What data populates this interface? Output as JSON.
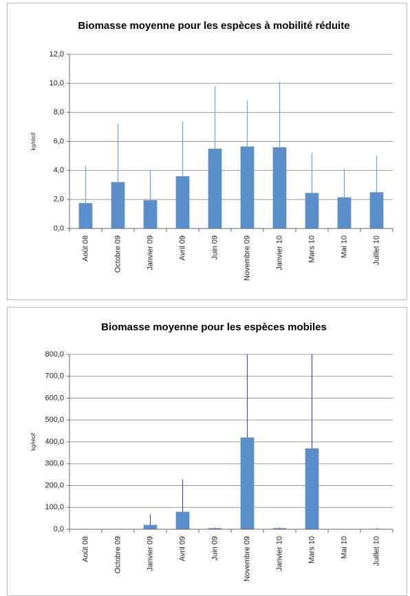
{
  "chart_data": [
    {
      "type": "bar",
      "title": "Biomasse moyenne pour les espèces à mobilité réduite",
      "y_label": "kg/récif",
      "categories": [
        "Août 08",
        "Octobre 09",
        "Janvier 09",
        "Avril 09",
        "Juin 09",
        "Novembre 09",
        "Janvier 10",
        "Mars 10",
        "Mai 10",
        "Juillet 10"
      ],
      "values": [
        1.75,
        3.2,
        1.95,
        3.6,
        5.5,
        5.65,
        5.6,
        2.45,
        2.15,
        2.5
      ],
      "errors": [
        2.55,
        4.0,
        2.05,
        3.8,
        4.3,
        3.15,
        4.5,
        2.75,
        1.95,
        2.5
      ],
      "color": "#5b8fcc",
      "error_color": "#6f9de6",
      "ylim": [
        0,
        12
      ],
      "yticks": [
        {
          "value": 0,
          "label": "0,0"
        },
        {
          "value": 2,
          "label": "2,0"
        },
        {
          "value": 4,
          "label": "4,0"
        },
        {
          "value": 6,
          "label": "6,0"
        },
        {
          "value": 8,
          "label": "8,0"
        },
        {
          "value": 10,
          "label": "10,0"
        },
        {
          "value": 12,
          "label": "12,0"
        }
      ],
      "grid": true
    },
    {
      "type": "bar",
      "title": "Biomasse moyenne pour les espèces mobiles",
      "y_label": "kg/récif",
      "categories": [
        "Août 08",
        "Octobre 09",
        "Janvier 09",
        "Avril 09",
        "Juin 09",
        "Novembre 09",
        "Janvier 10",
        "Mars 10",
        "Mai 10",
        "Juillet 10"
      ],
      "values": [
        0,
        0,
        20,
        80,
        5,
        420,
        5,
        370,
        0,
        2
      ],
      "errors": [
        0,
        0,
        48,
        148,
        3,
        400,
        3,
        450,
        0,
        3
      ],
      "color": "#5b8fcc",
      "error_color": "#4a4aa8",
      "ylim": [
        0,
        800
      ],
      "yticks": [
        {
          "value": 0,
          "label": "0,0"
        },
        {
          "value": 100,
          "label": "100,0"
        },
        {
          "value": 200,
          "label": "200,0"
        },
        {
          "value": 300,
          "label": "300,0"
        },
        {
          "value": 400,
          "label": "400,0"
        },
        {
          "value": 500,
          "label": "500,0"
        },
        {
          "value": 600,
          "label": "600,0"
        },
        {
          "value": 700,
          "label": "700,0"
        },
        {
          "value": 800,
          "label": "800,0"
        }
      ],
      "grid": true
    }
  ]
}
